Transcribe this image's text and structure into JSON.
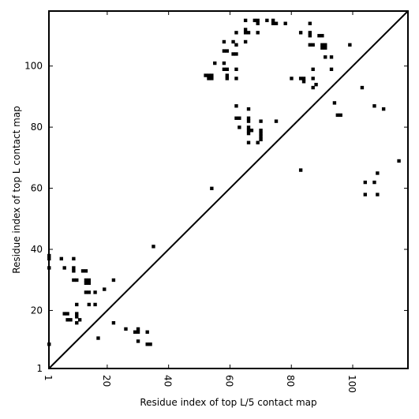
{
  "chart_data": {
    "type": "scatter",
    "xlabel": "Residue index of top L/5 contact map",
    "ylabel": "Residue index of top L contact map",
    "xlim": [
      1,
      118
    ],
    "ylim": [
      1,
      118
    ],
    "x_ticks": [
      1,
      20,
      40,
      60,
      80,
      100
    ],
    "y_ticks": [
      1,
      20,
      40,
      60,
      80,
      100
    ],
    "diagonal_line": true,
    "grid": false,
    "marker_color": "#000000",
    "series": [
      {
        "points": [
          [
            1,
            38
          ],
          [
            1,
            37
          ],
          [
            1,
            34
          ],
          [
            1,
            9
          ],
          [
            5,
            37
          ],
          [
            6,
            34
          ],
          [
            6,
            19
          ],
          [
            7,
            19
          ],
          [
            7,
            17
          ],
          [
            8,
            17
          ],
          [
            9,
            37
          ],
          [
            9,
            34
          ],
          [
            9,
            33
          ],
          [
            9,
            30
          ],
          [
            10,
            30
          ],
          [
            10,
            22
          ],
          [
            10,
            19
          ],
          [
            10,
            18
          ],
          [
            10,
            16
          ],
          [
            11,
            17
          ],
          [
            12,
            33
          ],
          [
            13,
            33
          ],
          [
            13,
            30
          ],
          [
            14,
            30
          ],
          [
            13,
            29
          ],
          [
            14,
            29
          ],
          [
            13,
            26
          ],
          [
            14,
            26
          ],
          [
            14,
            22
          ],
          [
            16,
            26
          ],
          [
            16,
            22
          ],
          [
            17,
            11
          ],
          [
            19,
            27
          ],
          [
            22,
            30
          ],
          [
            22,
            16
          ],
          [
            26,
            14
          ],
          [
            29,
            13
          ],
          [
            30,
            14
          ],
          [
            30,
            13
          ],
          [
            30,
            10
          ],
          [
            33,
            13
          ],
          [
            33,
            9
          ],
          [
            34,
            9
          ],
          [
            35,
            41
          ],
          [
            52,
            97
          ],
          [
            53,
            97
          ],
          [
            54,
            97
          ],
          [
            53,
            96
          ],
          [
            54,
            96
          ],
          [
            54,
            60
          ],
          [
            55,
            101
          ],
          [
            58,
            108
          ],
          [
            58,
            105
          ],
          [
            59,
            105
          ],
          [
            58,
            101
          ],
          [
            58,
            99
          ],
          [
            59,
            99
          ],
          [
            59,
            97
          ],
          [
            59,
            96
          ],
          [
            61,
            108
          ],
          [
            61,
            104
          ],
          [
            62,
            107
          ],
          [
            62,
            104
          ],
          [
            62,
            111
          ],
          [
            62,
            99
          ],
          [
            62,
            96
          ],
          [
            62,
            87
          ],
          [
            62,
            83
          ],
          [
            63,
            83
          ],
          [
            63,
            80
          ],
          [
            65,
            115
          ],
          [
            65,
            112
          ],
          [
            65,
            111
          ],
          [
            66,
            111
          ],
          [
            65,
            108
          ],
          [
            66,
            86
          ],
          [
            66,
            83
          ],
          [
            66,
            82
          ],
          [
            66,
            80
          ],
          [
            66,
            79
          ],
          [
            67,
            79
          ],
          [
            66,
            78
          ],
          [
            66,
            75
          ],
          [
            68,
            115
          ],
          [
            69,
            115
          ],
          [
            69,
            114
          ],
          [
            69,
            111
          ],
          [
            69,
            75
          ],
          [
            70,
            82
          ],
          [
            70,
            79
          ],
          [
            70,
            78
          ],
          [
            70,
            77
          ],
          [
            70,
            76
          ],
          [
            72,
            115
          ],
          [
            74,
            115
          ],
          [
            74,
            114
          ],
          [
            75,
            114
          ],
          [
            75,
            82
          ],
          [
            78,
            114
          ],
          [
            80,
            96
          ],
          [
            83,
            111
          ],
          [
            83,
            96
          ],
          [
            84,
            96
          ],
          [
            84,
            95
          ],
          [
            83,
            66
          ],
          [
            86,
            114
          ],
          [
            86,
            111
          ],
          [
            86,
            110
          ],
          [
            86,
            107
          ],
          [
            87,
            107
          ],
          [
            87,
            99
          ],
          [
            87,
            96
          ],
          [
            87,
            93
          ],
          [
            88,
            94
          ],
          [
            89,
            110
          ],
          [
            90,
            110
          ],
          [
            90,
            107
          ],
          [
            91,
            107
          ],
          [
            90,
            106
          ],
          [
            91,
            106
          ],
          [
            91,
            103
          ],
          [
            93,
            103
          ],
          [
            93,
            99
          ],
          [
            94,
            88
          ],
          [
            95,
            84
          ],
          [
            96,
            84
          ],
          [
            99,
            107
          ],
          [
            103,
            93
          ],
          [
            104,
            62
          ],
          [
            104,
            58
          ],
          [
            107,
            87
          ],
          [
            107,
            62
          ],
          [
            108,
            65
          ],
          [
            108,
            58
          ],
          [
            110,
            86
          ],
          [
            115,
            69
          ]
        ]
      }
    ]
  }
}
